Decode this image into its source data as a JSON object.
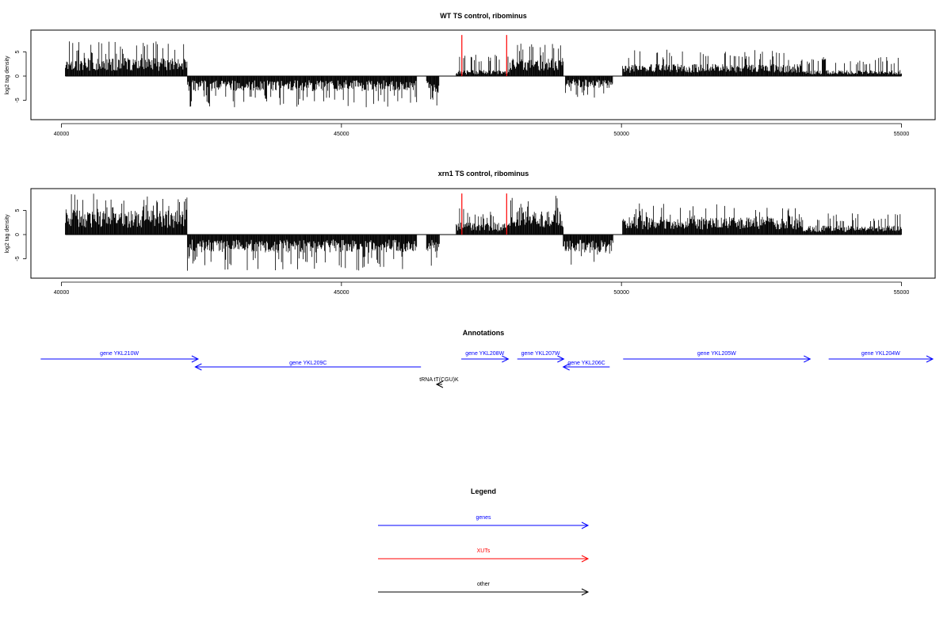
{
  "chart_data": [
    {
      "type": "bar",
      "title": "WT TS control, ribominus",
      "ylabel": "log2 tag density",
      "xlim": [
        40000,
        55000
      ],
      "ylim": [
        -8,
        9
      ],
      "x_ticks": [
        "40000",
        "45000",
        "50000",
        "55000"
      ],
      "y_ticks": [
        "-5",
        "0",
        "5"
      ],
      "grid": false,
      "approximate_envelope": [
        {
          "from": 40070,
          "to": 42250,
          "strand": "+",
          "typical": 3,
          "max": 7.5
        },
        {
          "from": 42250,
          "to": 46350,
          "strand": "-",
          "typical": -2.5,
          "max": -6.5
        },
        {
          "from": 46520,
          "to": 46560,
          "strand": "-",
          "typical": -2.5,
          "max": -5.8
        },
        {
          "from": 46560,
          "to": 46750,
          "strand": "-",
          "typical": -3,
          "max": -6.2
        },
        {
          "from": 47050,
          "to": 48000,
          "strand": "+",
          "typical": 1,
          "max": 4.5
        },
        {
          "from": 48000,
          "to": 48960,
          "strand": "+",
          "typical": 3,
          "max": 7
        },
        {
          "from": 49000,
          "to": 49850,
          "strand": "-",
          "typical": -2,
          "max": -4.5
        },
        {
          "from": 50020,
          "to": 53200,
          "strand": "+",
          "typical": 2,
          "max": 5.5
        },
        {
          "from": 53200,
          "to": 55000,
          "strand": "+",
          "typical": 1,
          "max": 4
        }
      ],
      "xut_markers": [
        {
          "x": 47150,
          "y": 8.5
        },
        {
          "x": 47950,
          "y": 8.5
        }
      ],
      "marker_color": "#ff0000"
    },
    {
      "type": "bar",
      "title": "xrn1 TS control, ribominus",
      "ylabel": "log2 tag density",
      "xlim": [
        40000,
        55000
      ],
      "ylim": [
        -8,
        9
      ],
      "x_ticks": [
        "40000",
        "45000",
        "50000",
        "55000"
      ],
      "y_ticks": [
        "-5",
        "0",
        "5"
      ],
      "grid": false,
      "approximate_envelope": [
        {
          "from": 40070,
          "to": 42250,
          "strand": "+",
          "typical": 4,
          "max": 8.5
        },
        {
          "from": 42250,
          "to": 46350,
          "strand": "-",
          "typical": -3,
          "max": -7.5
        },
        {
          "from": 46520,
          "to": 46750,
          "strand": "-",
          "typical": -3,
          "max": -6.5
        },
        {
          "from": 47050,
          "to": 48000,
          "strand": "+",
          "typical": 2,
          "max": 5.5
        },
        {
          "from": 48000,
          "to": 48960,
          "strand": "+",
          "typical": 4,
          "max": 8.5
        },
        {
          "from": 48960,
          "to": 49850,
          "strand": "-",
          "typical": -3,
          "max": -6.5
        },
        {
          "from": 50020,
          "to": 53200,
          "strand": "+",
          "typical": 3,
          "max": 6.5
        },
        {
          "from": 53200,
          "to": 55000,
          "strand": "+",
          "typical": 1.5,
          "max": 4.5
        }
      ],
      "xut_markers": [
        {
          "x": 47150,
          "y": 8.5
        },
        {
          "x": 47950,
          "y": 8.5
        }
      ],
      "marker_color": "#ff0000"
    }
  ],
  "annotations": {
    "title": "Annotations",
    "features": [
      {
        "label": "gene YKL210W",
        "start": 39630,
        "end": 42440,
        "strand": "+",
        "color": "#0000ff",
        "row": 1
      },
      {
        "label": "gene YKL209C",
        "start": 42390,
        "end": 46420,
        "strand": "-",
        "color": "#0000ff",
        "row": 2
      },
      {
        "label": "gene YKL208W",
        "start": 47140,
        "end": 47980,
        "strand": "+",
        "color": "#0000ff",
        "row": 1
      },
      {
        "label": "gene YKL207W",
        "start": 48140,
        "end": 48970,
        "strand": "+",
        "color": "#0000ff",
        "row": 1
      },
      {
        "label": "gene YKL206C",
        "start": 48960,
        "end": 49790,
        "strand": "-",
        "color": "#0000ff",
        "row": 2
      },
      {
        "label": "gene YKL205W",
        "start": 50030,
        "end": 53370,
        "strand": "+",
        "color": "#0000ff",
        "row": 1
      },
      {
        "label": "gene YKL204W",
        "start": 53700,
        "end": 55620,
        "strand": "+",
        "color": "#0000ff",
        "row": 1
      },
      {
        "label": "tRNA tT(CGU)K",
        "start": 46700,
        "end": 46800,
        "strand": "-",
        "color": "#000000",
        "row": 3
      }
    ]
  },
  "legend": {
    "title": "Legend",
    "items": [
      {
        "label": "genes",
        "color": "#0000ff"
      },
      {
        "label": "XUTs",
        "color": "#ff0000"
      },
      {
        "label": "other",
        "color": "#000000"
      }
    ]
  }
}
